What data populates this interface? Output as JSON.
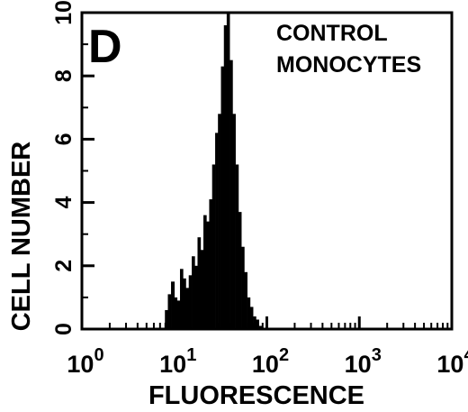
{
  "chart_data": {
    "type": "histogram",
    "panel_label": "D",
    "annotation": [
      "CONTROL",
      "MONOCYTES"
    ],
    "xlabel": "FLUORESCENCE",
    "ylabel": "CELL NUMBER",
    "x_scale": "log",
    "xlim": [
      1,
      10000
    ],
    "ylim": [
      0,
      10
    ],
    "x_ticks": [
      {
        "base": "10",
        "exp": "0",
        "value": 1
      },
      {
        "base": "10",
        "exp": "1",
        "value": 10
      },
      {
        "base": "10",
        "exp": "2",
        "value": 100
      },
      {
        "base": "10",
        "exp": "3",
        "value": 1000
      },
      {
        "base": "10",
        "exp": "4",
        "value": 10000
      }
    ],
    "y_ticks": [
      "0",
      "2",
      "4",
      "6",
      "8",
      "10"
    ],
    "fill_color": "#000000",
    "grid": false,
    "x": [
      7.9,
      8.5,
      9.2,
      10,
      10.7,
      11.5,
      12.4,
      13.3,
      14.3,
      15.4,
      16.6,
      17.8,
      19.2,
      20.6,
      22.2,
      23.8,
      25.6,
      27.6,
      29.6,
      31.9,
      34.3,
      36.8,
      39.6,
      42.6,
      45.8,
      49.3,
      53,
      57,
      61.3,
      65.9,
      70.9,
      76.3,
      82
    ],
    "values": [
      0.6,
      1.1,
      1.5,
      1.0,
      0.9,
      1.9,
      1.6,
      1.3,
      1.7,
      2.3,
      2.0,
      2.9,
      2.5,
      3.6,
      3.4,
      4.1,
      5.2,
      6.2,
      6.8,
      8.3,
      9.6,
      10.0,
      8.5,
      6.8,
      5.2,
      3.7,
      2.6,
      1.8,
      1.0,
      0.7,
      0.4,
      0.3,
      0.1
    ]
  }
}
